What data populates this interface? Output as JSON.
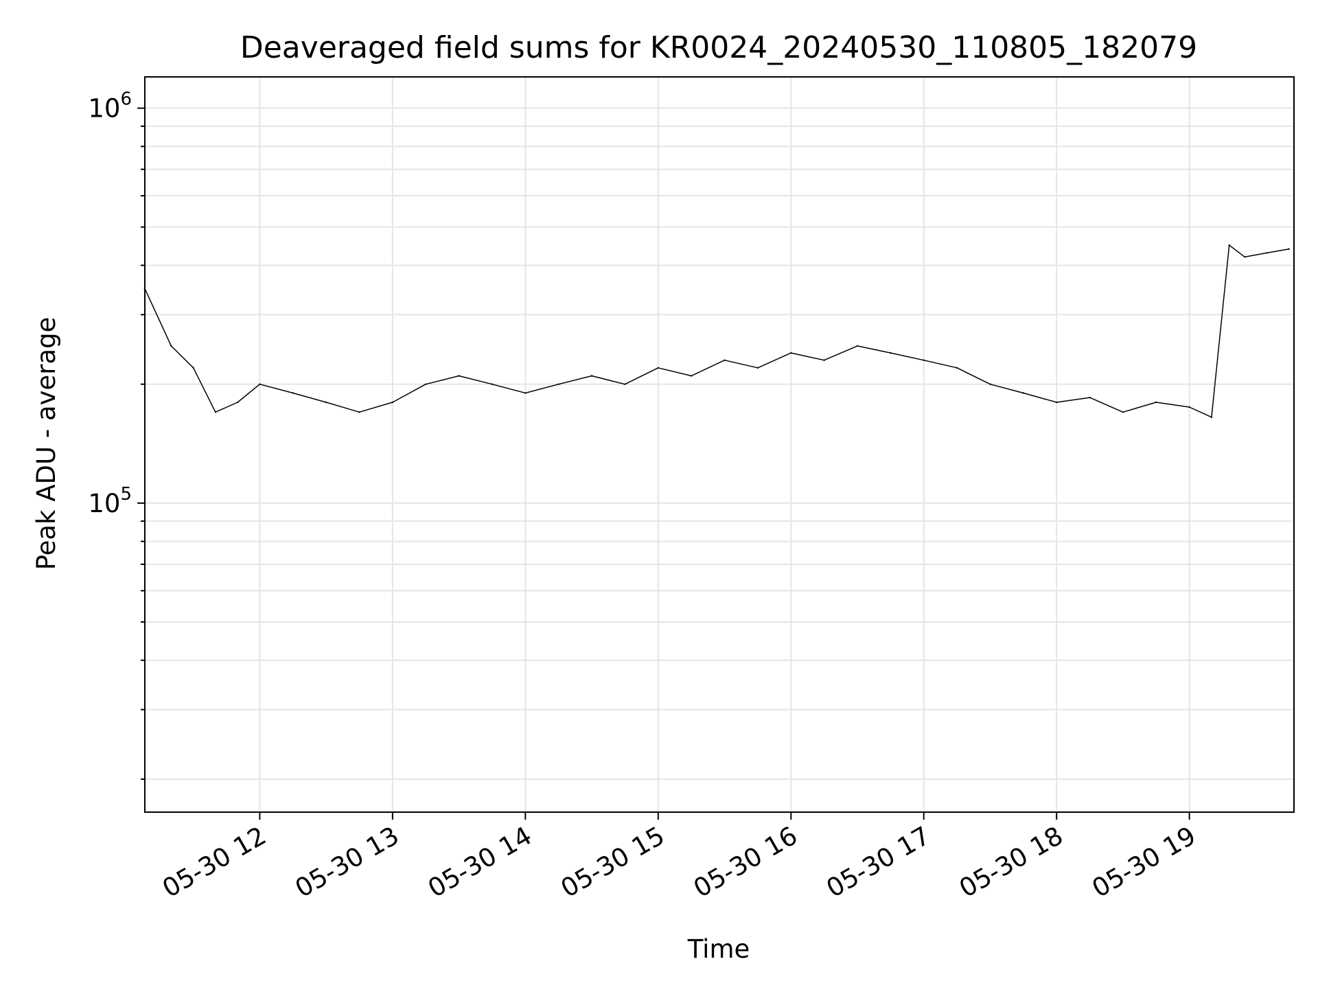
{
  "chart_data": {
    "type": "line",
    "title": "Deaveraged field sums for KR0024_20240530_110805_182079",
    "xlabel": "Time",
    "ylabel": "Peak ADU - average",
    "x_tick_labels": [
      {
        "time": "2024-05-30T12:00",
        "label": "05-30 12"
      },
      {
        "time": "2024-05-30T13:00",
        "label": "05-30 13"
      },
      {
        "time": "2024-05-30T14:00",
        "label": "05-30 14"
      },
      {
        "time": "2024-05-30T15:00",
        "label": "05-30 15"
      },
      {
        "time": "2024-05-30T16:00",
        "label": "05-30 16"
      },
      {
        "time": "2024-05-30T17:00",
        "label": "05-30 17"
      },
      {
        "time": "2024-05-30T18:00",
        "label": "05-30 18"
      },
      {
        "time": "2024-05-30T19:00",
        "label": "05-30 19"
      }
    ],
    "y_scale": "log",
    "y_major_ticks": [
      {
        "value": 100000,
        "base": "10",
        "exp": "5"
      },
      {
        "value": 1000000,
        "base": "10",
        "exp": "6"
      }
    ],
    "xlim": [
      "2024-05-30T11:08:05",
      "2024-05-30T19:47:15"
    ],
    "ylim": [
      16500,
      1200000
    ],
    "grid": true,
    "line_color": "#000000",
    "grid_color": "#e5e5e5",
    "series": [
      {
        "x": [
          "2024-05-30T11:08",
          "2024-05-30T11:20",
          "2024-05-30T11:30",
          "2024-05-30T11:40",
          "2024-05-30T11:50",
          "2024-05-30T12:00",
          "2024-05-30T12:15",
          "2024-05-30T12:30",
          "2024-05-30T12:45",
          "2024-05-30T13:00",
          "2024-05-30T13:15",
          "2024-05-30T13:30",
          "2024-05-30T13:45",
          "2024-05-30T14:00",
          "2024-05-30T14:15",
          "2024-05-30T14:30",
          "2024-05-30T14:45",
          "2024-05-30T15:00",
          "2024-05-30T15:15",
          "2024-05-30T15:30",
          "2024-05-30T15:45",
          "2024-05-30T16:00",
          "2024-05-30T16:15",
          "2024-05-30T16:30",
          "2024-05-30T16:45",
          "2024-05-30T17:00",
          "2024-05-30T17:15",
          "2024-05-30T17:30",
          "2024-05-30T17:45",
          "2024-05-30T18:00",
          "2024-05-30T18:15",
          "2024-05-30T18:30",
          "2024-05-30T18:45",
          "2024-05-30T19:00",
          "2024-05-30T19:10",
          "2024-05-30T19:18",
          "2024-05-30T19:25",
          "2024-05-30T19:35",
          "2024-05-30T19:45"
        ],
        "values": [
          350000,
          250000,
          220000,
          170000,
          180000,
          200000,
          190000,
          180000,
          170000,
          180000,
          200000,
          210000,
          200000,
          190000,
          200000,
          210000,
          200000,
          220000,
          210000,
          230000,
          220000,
          240000,
          230000,
          250000,
          240000,
          230000,
          220000,
          200000,
          190000,
          180000,
          185000,
          170000,
          180000,
          175000,
          165000,
          450000,
          420000,
          430000,
          440000
        ]
      }
    ]
  }
}
